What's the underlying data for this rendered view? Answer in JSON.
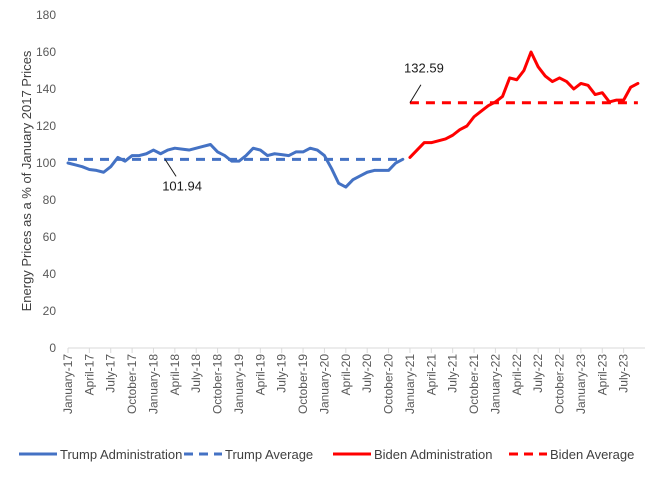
{
  "chart_data": {
    "type": "line",
    "title": "",
    "ylabel": "Energy Prices as a % of January 2017 Prices",
    "xlabel": "",
    "ylim": [
      0,
      180
    ],
    "yticks": [
      0,
      20,
      40,
      60,
      80,
      100,
      120,
      140,
      160,
      180
    ],
    "grid": false,
    "legend_position": "bottom",
    "x_start": "2017-01",
    "x_tick_labels": [
      "January-17",
      "April-17",
      "July-17",
      "October-17",
      "January-18",
      "April-18",
      "July-18",
      "October-18",
      "January-19",
      "April-19",
      "July-19",
      "October-19",
      "January-20",
      "April-20",
      "July-20",
      "October-20",
      "January-21",
      "April-21",
      "July-21",
      "October-21",
      "January-22",
      "April-22",
      "July-22",
      "October-22",
      "January-23",
      "April-23",
      "July-23"
    ],
    "series": [
      {
        "name": "Trump Administration",
        "color": "#4472C4",
        "style": "solid",
        "start_month": "2017-01",
        "values": [
          100,
          99,
          98,
          96.5,
          96,
          95,
          98,
          103,
          101,
          104,
          104,
          105,
          107,
          105,
          107,
          108,
          107.5,
          107,
          108,
          109,
          110,
          106,
          104,
          101,
          101,
          104,
          108,
          107,
          104,
          105,
          104.5,
          104,
          106,
          106,
          108,
          107,
          104,
          97,
          89,
          87,
          91,
          93,
          95,
          96,
          96,
          96,
          100,
          102
        ]
      },
      {
        "name": "Trump Average",
        "color": "#4472C4",
        "style": "dashed",
        "start_month": "2017-01",
        "end_month": "2020-12",
        "value": 101.94
      },
      {
        "name": "Biden Administration",
        "color": "#FF0000",
        "style": "solid",
        "start_month": "2021-01",
        "values": [
          103,
          107,
          111,
          111,
          112,
          113,
          115,
          118,
          120,
          125,
          128,
          131,
          133,
          136,
          146,
          145,
          150,
          160,
          152,
          147,
          144,
          146,
          144,
          140,
          143,
          142,
          137,
          138,
          133,
          134,
          134,
          141,
          143
        ]
      },
      {
        "name": "Biden Average",
        "color": "#FF0000",
        "style": "dashed",
        "start_month": "2021-01",
        "end_month": "2023-09",
        "value": 132.59
      }
    ],
    "annotations": [
      {
        "text": "101.94",
        "series": "Trump Average"
      },
      {
        "text": "132.59",
        "series": "Biden Average"
      }
    ]
  }
}
